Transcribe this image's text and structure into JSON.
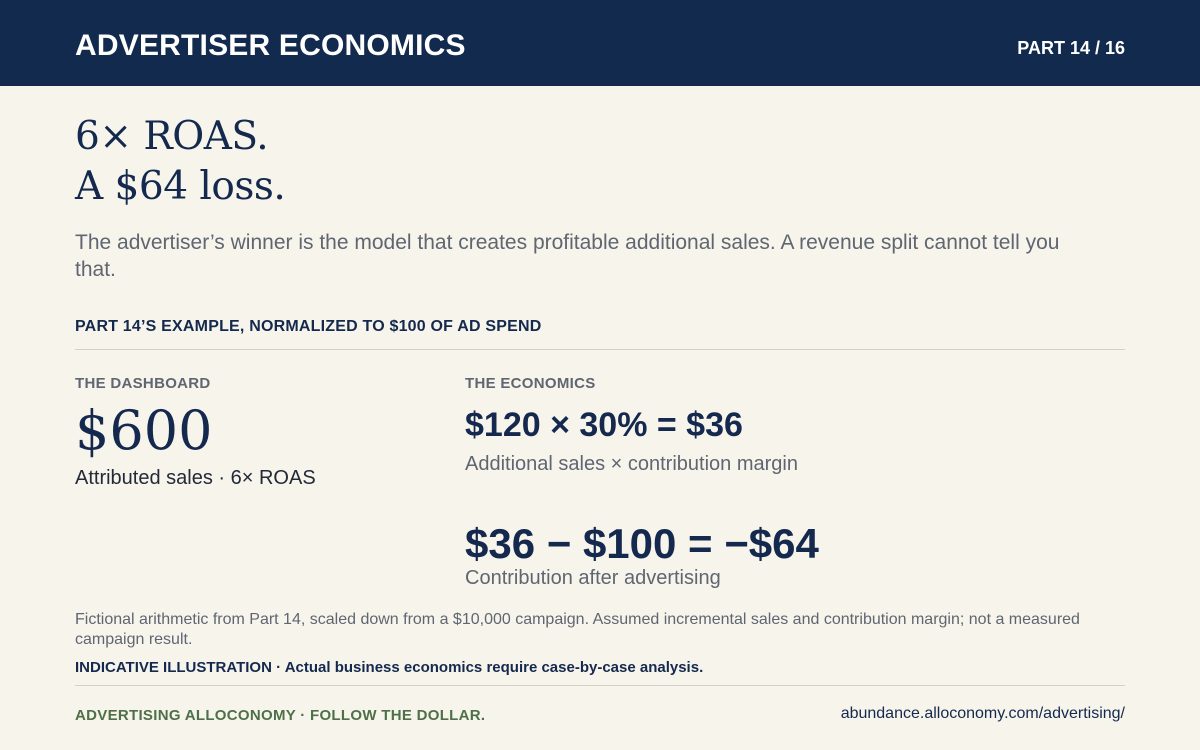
{
  "header": {
    "title": "ADVERTISER ECONOMICS",
    "part": "PART 14 / 16"
  },
  "headline": {
    "line1": "6× ROAS.",
    "line2": "A $64 loss."
  },
  "subtitle": "The advertiser’s winner is the model that creates profitable additional sales. A revenue split cannot tell you that.",
  "section_label": "PART 14’S EXAMPLE, NORMALIZED TO $100 OF AD SPEND",
  "dashboard": {
    "label": "THE DASHBOARD",
    "value": "$600",
    "caption": "Attributed sales · 6× ROAS"
  },
  "economics": {
    "label": "THE ECONOMICS",
    "equation1": "$120 × 30% = $36",
    "caption1": "Additional sales × contribution margin",
    "equation2": "$36 − $100 = −$64",
    "caption2": "Contribution after advertising"
  },
  "footnote": "Fictional arithmetic from Part 14, scaled down from a $10,000 campaign. Assumed incremental sales and contribution margin; not a measured campaign result.",
  "disclaimer": "INDICATIVE ILLUSTRATION · Actual business economics require case-by-case analysis.",
  "footer": {
    "left": "ADVERTISING ALLOCONOMY · FOLLOW THE DOLLAR.",
    "right": "abundance.alloconomy.com/advertising/"
  }
}
